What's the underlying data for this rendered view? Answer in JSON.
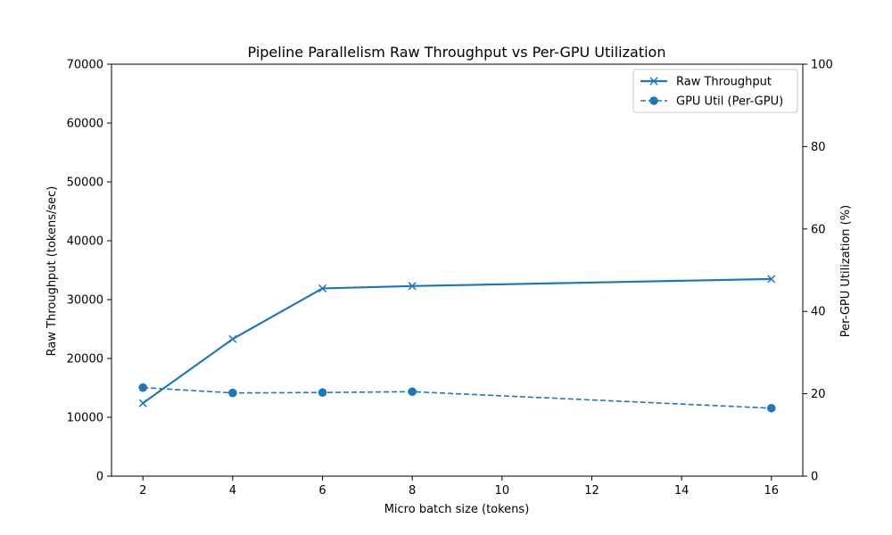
{
  "chart_data": {
    "type": "line",
    "title": "Pipeline Parallelism Raw Throughput vs Per-GPU Utilization",
    "xlabel": "Micro batch size (tokens)",
    "ylabel": "Raw Throughput (tokens/sec)",
    "y2label": "Per-GPU Utilization (%)",
    "x": [
      2,
      4,
      6,
      8,
      16
    ],
    "xlim": [
      1.3,
      16.7
    ],
    "xticks": [
      2,
      4,
      6,
      8,
      10,
      12,
      14,
      16
    ],
    "ylim": [
      0,
      70000
    ],
    "yticks": [
      0,
      10000,
      20000,
      30000,
      40000,
      50000,
      60000,
      70000
    ],
    "y2lim": [
      0,
      100
    ],
    "y2ticks": [
      0,
      20,
      40,
      60,
      80,
      100
    ],
    "grid": false,
    "legend_position": "top-right",
    "series": [
      {
        "name": "Raw Throughput",
        "axis": "left",
        "values": [
          12400,
          23300,
          31900,
          32300,
          33500
        ],
        "color": "#1f77b4",
        "line_style": "solid",
        "marker": "x"
      },
      {
        "name": "GPU Util (Per-GPU)",
        "axis": "right",
        "values": [
          21.5,
          20.2,
          20.3,
          20.5,
          16.5
        ],
        "color": "#1f77b4",
        "line_style": "dashed",
        "marker": "circle"
      }
    ]
  }
}
